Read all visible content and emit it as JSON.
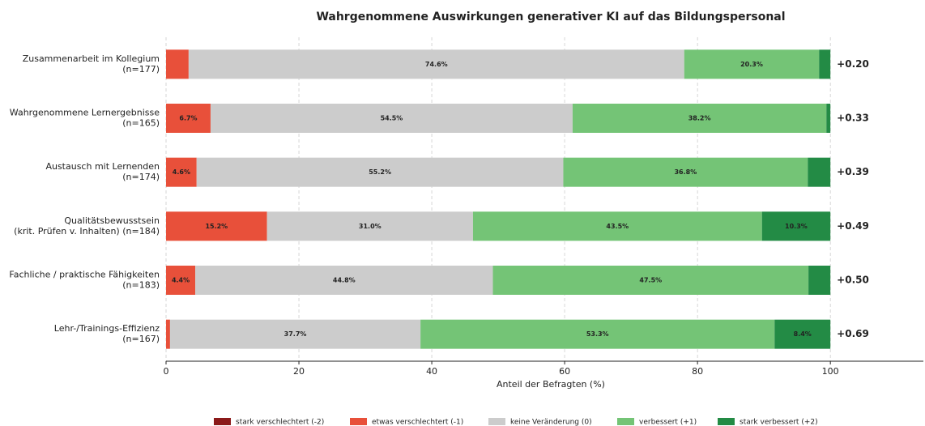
{
  "chart_data": {
    "type": "stacked_barh",
    "title": "Wahrgenommene Auswirkungen generativer KI auf das Bildungspersonal",
    "xlabel": "Anteil der Befragten (%)",
    "categories": [
      [
        "Zusammenarbeit im Kollegium",
        "(n=177)"
      ],
      [
        "Wahrgenommene Lernergebnisse",
        "(n=165)"
      ],
      [
        "Austausch mit Lernenden",
        "(n=174)"
      ],
      [
        "Qualitätsbewusstsein",
        "(krit. Prüfen v. Inhalten) (n=184)"
      ],
      [
        "Fachliche / praktische Fähigkeiten",
        "(n=183)"
      ],
      [
        "Lehr-/Trainings-Effizienz",
        "(n=167)"
      ]
    ],
    "series": [
      {
        "name": "stark verschlechtert (-2)",
        "color": "#8b1a1a",
        "values": [
          0,
          0,
          0,
          0,
          0,
          0
        ]
      },
      {
        "name": "etwas verschlechtert (-1)",
        "color": "#e8503a",
        "values": [
          3.4,
          6.7,
          4.6,
          15.2,
          4.4,
          0.6
        ],
        "value_labels": [
          null,
          "6.7%",
          "4.6%",
          "15.2%",
          "4.4%",
          null
        ]
      },
      {
        "name": "keine Veränderung (0)",
        "color": "#cccccc",
        "values": [
          74.6,
          54.5,
          55.2,
          31.0,
          44.8,
          37.7
        ],
        "value_labels": [
          "74.6%",
          "54.5%",
          "55.2%",
          "31.0%",
          "44.8%",
          "37.7%"
        ]
      },
      {
        "name": "verbessert (+1)",
        "color": "#74c476",
        "values": [
          20.3,
          38.2,
          36.8,
          43.5,
          47.5,
          53.3
        ],
        "value_labels": [
          "20.3%",
          "38.2%",
          "36.8%",
          "43.5%",
          "47.5%",
          "53.3%"
        ]
      },
      {
        "name": "stark verbessert (+2)",
        "color": "#238b45",
        "values": [
          1.7,
          0.6,
          3.4,
          10.3,
          3.3,
          8.4
        ],
        "value_labels": [
          null,
          null,
          null,
          "10.3%",
          null,
          "8.4%"
        ]
      }
    ],
    "net_scores": [
      {
        "value": 0.2,
        "label": "+0.20"
      },
      {
        "value": 0.33,
        "label": "+0.33"
      },
      {
        "value": 0.39,
        "label": "+0.39"
      },
      {
        "value": 0.49,
        "label": "+0.49"
      },
      {
        "value": 0.5,
        "label": "+0.50"
      },
      {
        "value": 0.69,
        "label": "+0.69"
      }
    ],
    "net_color": "#2e8b3e",
    "xlim": [
      0,
      114
    ],
    "xticks": [
      0,
      20,
      40,
      60,
      80,
      100
    ],
    "grid": true
  }
}
